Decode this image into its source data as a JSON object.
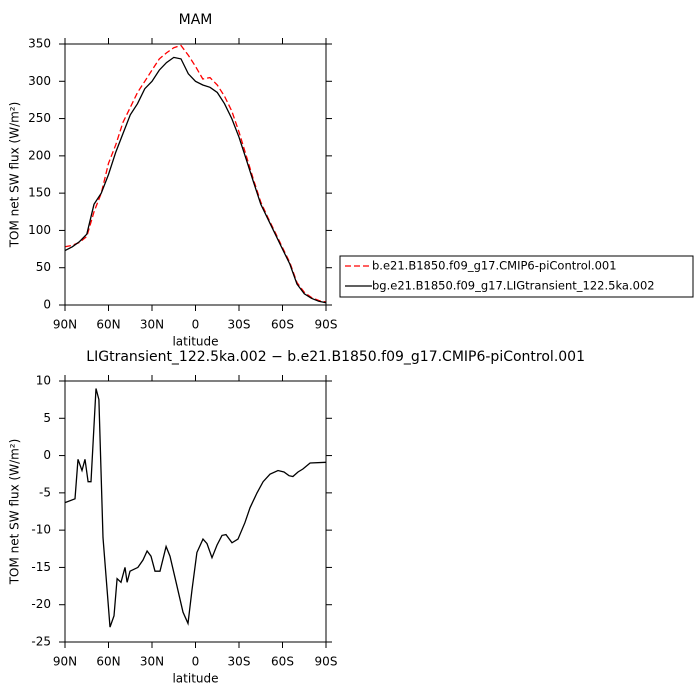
{
  "chart_data": [
    {
      "type": "line",
      "title": "MAM",
      "xlabel": "latitude",
      "ylabel": "TOM net SW flux (W/m²)",
      "x": [
        90,
        85,
        80,
        75,
        70,
        65,
        60,
        55,
        50,
        45,
        40,
        35,
        30,
        25,
        20,
        15,
        10,
        5,
        0,
        -5,
        -10,
        -15,
        -20,
        -25,
        -30,
        -35,
        -40,
        -45,
        -50,
        -55,
        -60,
        -65,
        -70,
        -75,
        -80,
        -85,
        -90
      ],
      "series": [
        {
          "name": "b.e21.B1850.f09_g17.CMIP6-piControl.001",
          "color": "#ff0000",
          "dashed": true,
          "values": [
            78,
            80,
            84,
            92,
            125,
            150,
            190,
            215,
            245,
            265,
            285,
            300,
            315,
            330,
            338,
            345,
            348,
            335,
            320,
            303,
            305,
            295,
            280,
            260,
            232,
            200,
            168,
            138,
            117,
            97,
            77,
            57,
            30,
            17,
            10,
            6,
            4
          ]
        },
        {
          "name": "bg.e21.B1850.f09_g17.LIGtransient_122.5ka.002",
          "color": "#000000",
          "dashed": false,
          "values": [
            73,
            78,
            85,
            95,
            135,
            150,
            175,
            205,
            230,
            255,
            270,
            290,
            300,
            315,
            325,
            332,
            330,
            310,
            300,
            295,
            292,
            285,
            270,
            250,
            225,
            195,
            165,
            135,
            115,
            95,
            75,
            55,
            28,
            15,
            9,
            5,
            3
          ]
        }
      ],
      "xlim": [
        90,
        -90
      ],
      "xticks": [
        {
          "value": 90,
          "label": "90N"
        },
        {
          "value": 60,
          "label": "60N"
        },
        {
          "value": 30,
          "label": "30N"
        },
        0,
        {
          "value": -30,
          "label": "30S"
        },
        {
          "value": -60,
          "label": "60S"
        },
        {
          "value": -90,
          "label": "90S"
        }
      ],
      "ylim": [
        0,
        350
      ],
      "yticks": [
        0,
        50,
        100,
        150,
        200,
        250,
        300,
        350
      ],
      "legend": "right"
    },
    {
      "type": "line",
      "title": "LIGtransient_122.5ka.002 − b.e21.B1850.f09_g17.CMIP6-piControl.001",
      "xlabel": "latitude",
      "ylabel": "TOM net SW flux (W/m²)",
      "x": [
        90,
        83.1,
        81,
        78.3,
        76.2,
        74.1,
        72.1,
        68.6,
        66.6,
        63.8,
        61,
        59,
        56.2,
        54.1,
        51.4,
        48.6,
        47.2,
        45.2,
        39.7,
        36.2,
        33.4,
        30.7,
        27.9,
        24.5,
        20.3,
        17.6,
        13.4,
        8.6,
        5.2,
        2.4,
        -1,
        -5.2,
        -7.9,
        -11.4,
        -14.8,
        -18.3,
        -21,
        -25.2,
        -29.3,
        -34.1,
        -37.6,
        -42.4,
        -46.6,
        -51.4,
        -56.9,
        -61,
        -64.5,
        -67.2,
        -70.7,
        -74.1,
        -79,
        -90
      ],
      "series": [
        {
          "name": null,
          "color": "#000000",
          "dashed": false,
          "values": [
            -6.3,
            -5.8,
            -0.5,
            -2,
            -0.5,
            -3.5,
            -3.5,
            9,
            7.5,
            -11,
            -18,
            -23,
            -21.5,
            -16.5,
            -17,
            -15,
            -17,
            -15.5,
            -15,
            -14,
            -12.8,
            -13.5,
            -15.5,
            -15.5,
            -12.2,
            -13.5,
            -17,
            -21,
            -22.5,
            -18,
            -13,
            -11.2,
            -11.8,
            -13.7,
            -12,
            -10.7,
            -10.6,
            -11.7,
            -11.2,
            -9,
            -7,
            -5,
            -3.5,
            -2.5,
            -2,
            -2.2,
            -2.7,
            -2.8,
            -2.2,
            -1.8,
            -1,
            -0.9
          ]
        }
      ],
      "xlim": [
        90,
        -90
      ],
      "xticks": [
        {
          "value": 90,
          "label": "90N"
        },
        {
          "value": 60,
          "label": "60N"
        },
        {
          "value": 30,
          "label": "30N"
        },
        0,
        {
          "value": -30,
          "label": "30S"
        },
        {
          "value": -60,
          "label": "60S"
        },
        {
          "value": -90,
          "label": "90S"
        }
      ],
      "ylim": [
        -25,
        10
      ],
      "yticks": [
        -25,
        -20,
        -15,
        -10,
        -5,
        0,
        5,
        10
      ]
    }
  ]
}
